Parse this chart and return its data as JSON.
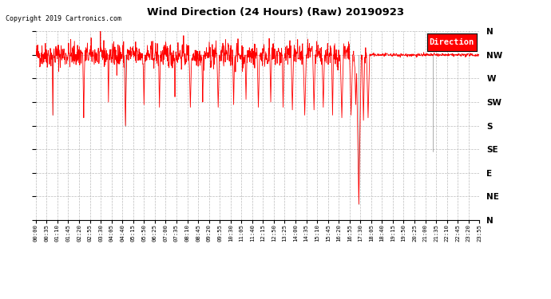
{
  "title": "Wind Direction (24 Hours) (Raw) 20190923",
  "copyright": "Copyright 2019 Cartronics.com",
  "background_color": "#ffffff",
  "plot_bg_color": "#ffffff",
  "grid_color": "#bbbbbb",
  "line_color": "#ff0000",
  "line_color_dark": "#333333",
  "legend_label": "Direction",
  "legend_bg": "#ff0000",
  "legend_fg": "#ffffff",
  "ytick_labels": [
    "N",
    "NW",
    "W",
    "SW",
    "S",
    "SE",
    "E",
    "NE",
    "N"
  ],
  "ytick_values": [
    360,
    315,
    270,
    225,
    180,
    135,
    90,
    45,
    0
  ],
  "ylim": [
    0,
    360
  ],
  "xlim_minutes": [
    0,
    1435
  ],
  "xtick_interval_minutes": 35,
  "seed": 42,
  "flatten_start": 1080,
  "flatten_value": 315
}
